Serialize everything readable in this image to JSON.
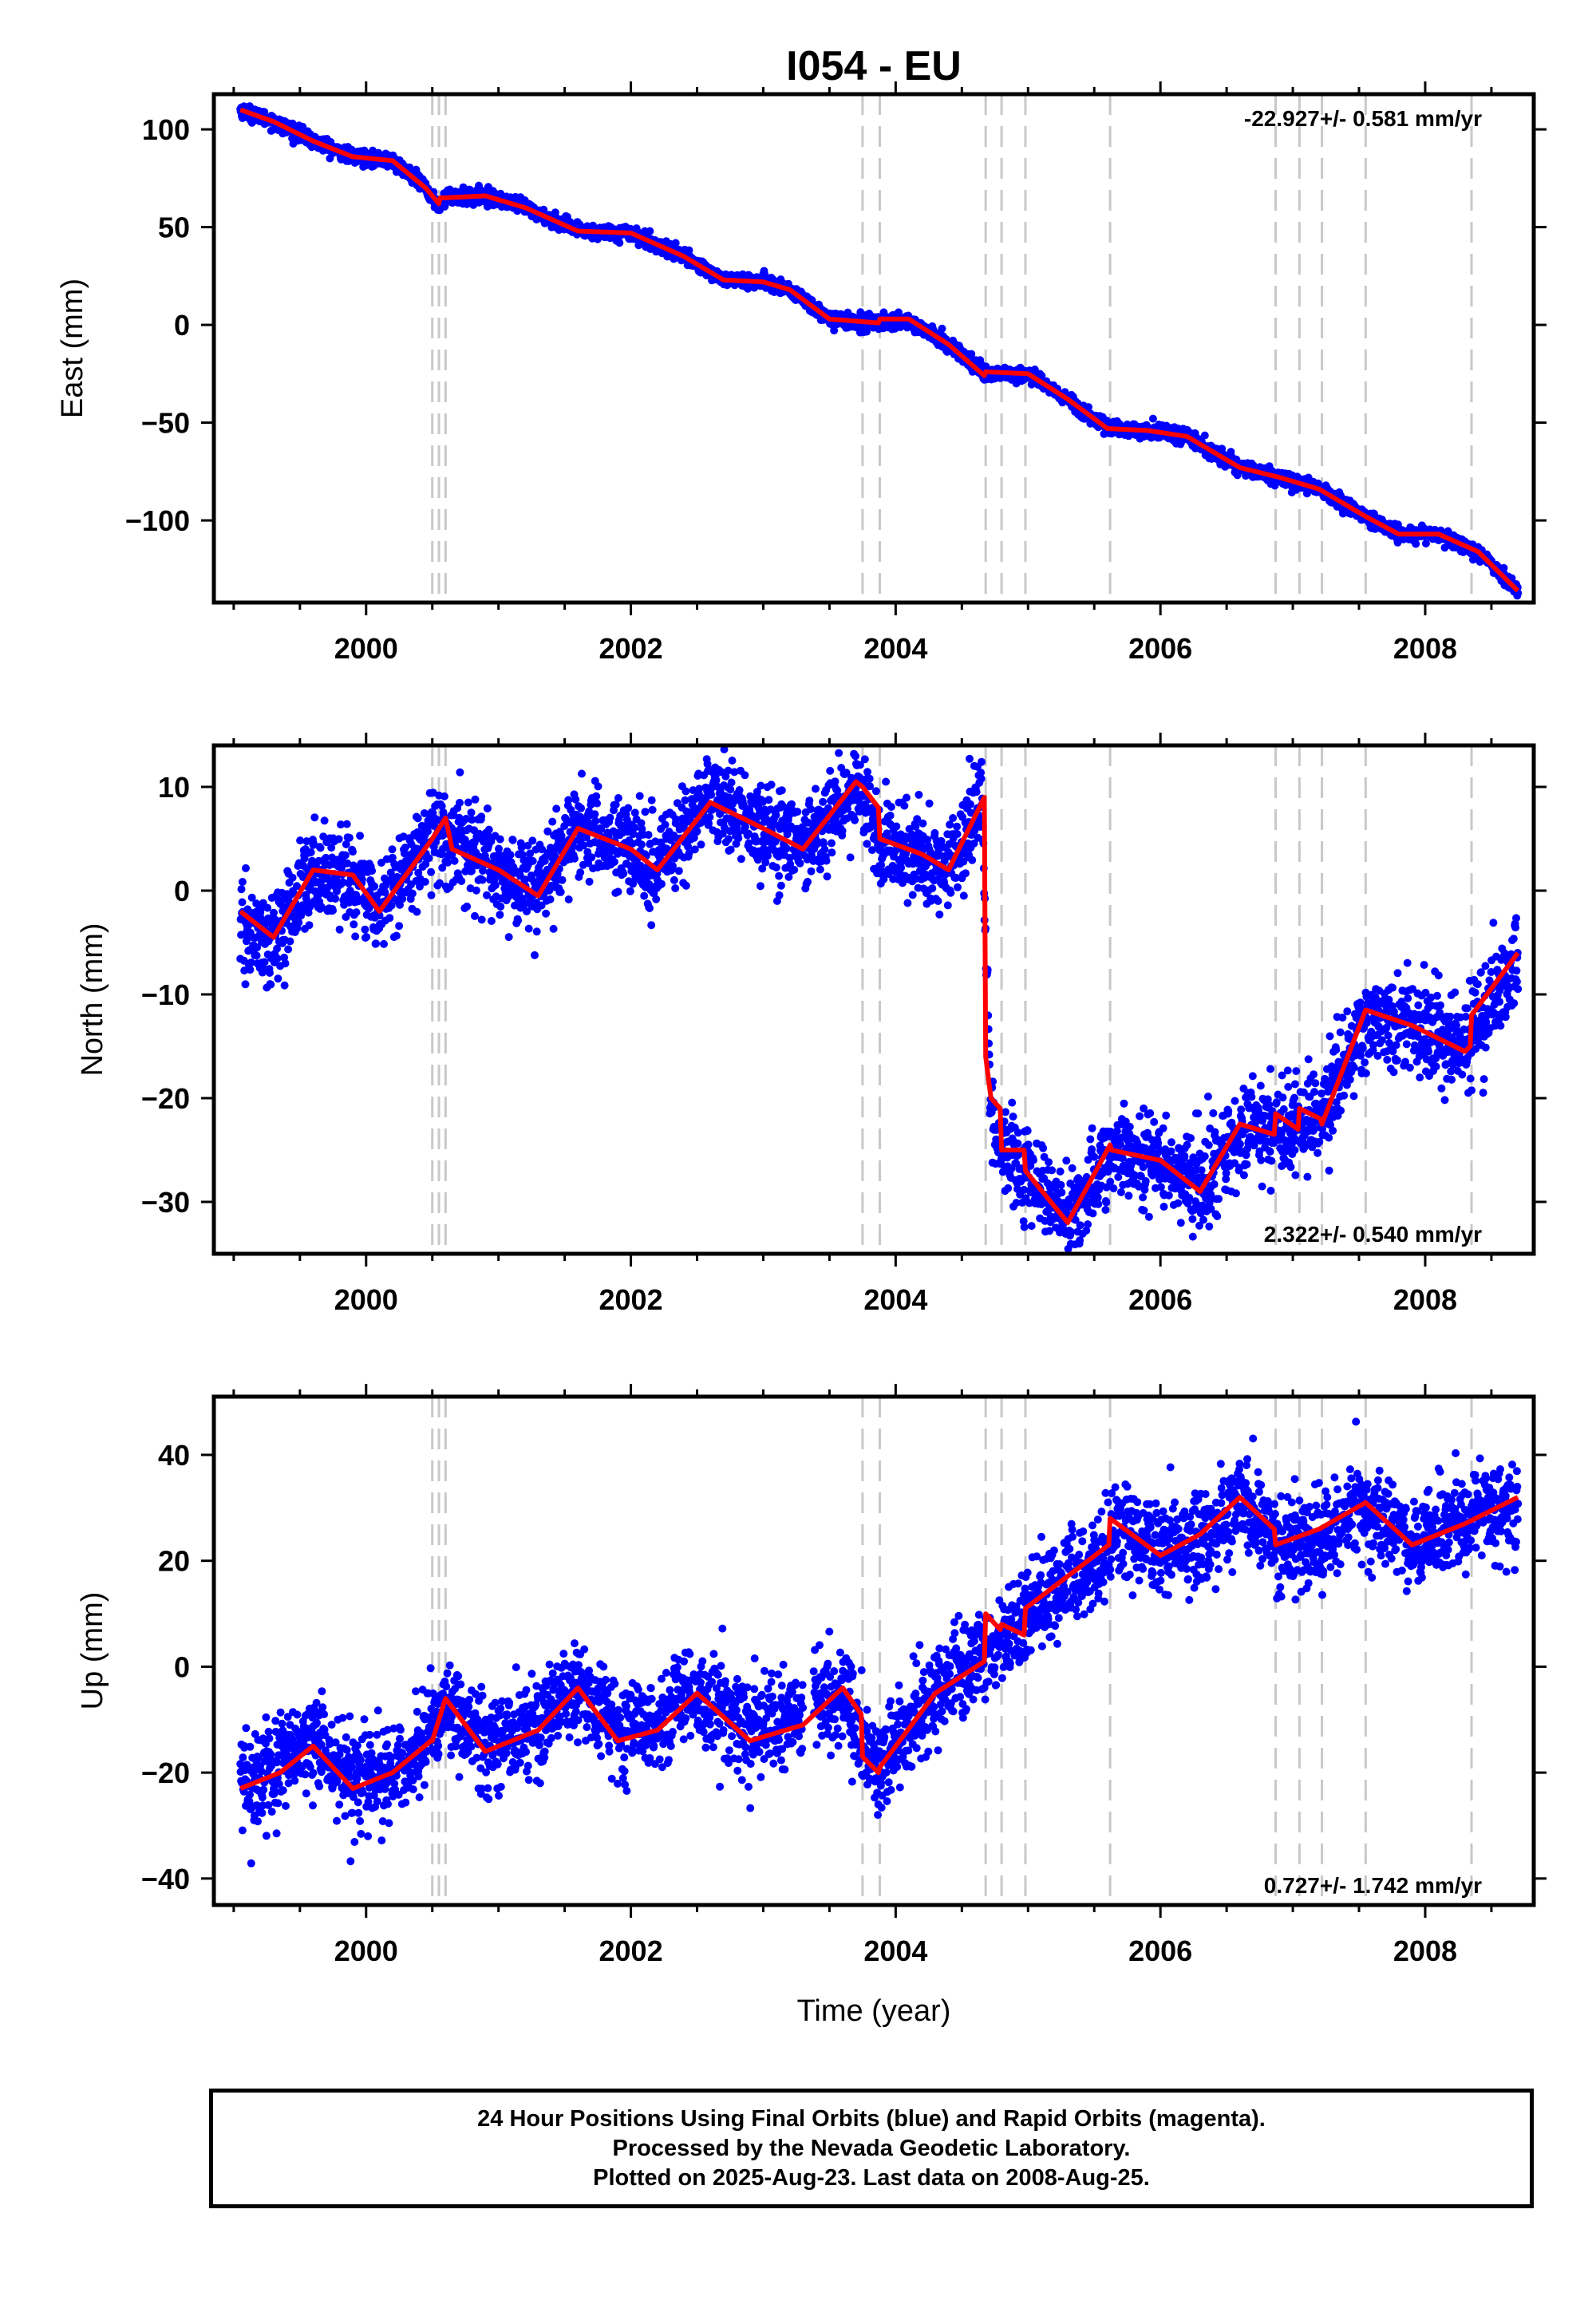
{
  "title": "I054 - EU",
  "colors": {
    "final_orbit_points": "#0000ff",
    "rapid_orbit_points": "#ff00ff",
    "model_fit": "#ff0000",
    "step_markers": "#c8c8c8"
  },
  "footer": {
    "line1": "24 Hour Positions Using Final Orbits (blue) and Rapid Orbits (magenta).",
    "line2": "Processed by the Nevada Geodetic Laboratory.",
    "line3": "Plotted on 2025-Aug-23. Last data on 2008-Aug-25."
  },
  "chart_data": [
    {
      "type": "scatter",
      "panel": "east",
      "title": "I054 - EU",
      "xlabel": "",
      "ylabel": "East (mm)",
      "rate_text": "-22.927+/- 0.581 mm/yr",
      "rate_position": "top-right",
      "xlim": [
        1998.85,
        2008.82
      ],
      "ylim": [
        -142,
        118
      ],
      "xticks": [
        2000,
        2002,
        2004,
        2006,
        2008
      ],
      "yticks": [
        -100,
        -50,
        0,
        50,
        100
      ],
      "grid": false,
      "vertical_markers": [
        2000.5,
        2000.55,
        2000.6,
        2003.75,
        2003.88,
        2004.68,
        2004.8,
        2004.98,
        2005.62,
        2006.87,
        2007.05,
        2007.22,
        2007.55,
        2008.35
      ],
      "series": [
        {
          "kind": "points",
          "color": "#0000ff",
          "start": 1999.05,
          "end": 2008.7,
          "noise_sd": 1.8,
          "trend_x": [
            1999.05,
            1999.3,
            1999.6,
            1999.9,
            2000.2,
            2000.45,
            2000.55,
            2000.6,
            2000.9,
            2001.2,
            2001.6,
            2002.0,
            2002.4,
            2002.7,
            2003.0,
            2003.2,
            2003.5,
            2003.88,
            2004.1,
            2004.4,
            2004.68,
            2005.0,
            2005.3,
            2005.6,
            2005.9,
            2006.2,
            2006.6,
            2006.9,
            2007.2,
            2007.55,
            2007.8,
            2008.1,
            2008.4,
            2008.7
          ],
          "trend_y": [
            110,
            104,
            94,
            86,
            84,
            70,
            60,
            65,
            66,
            60,
            48,
            47,
            35,
            23,
            22,
            18,
            3,
            1,
            2,
            -10,
            -25,
            -25,
            -38,
            -53,
            -54,
            -57,
            -73,
            -78,
            -84,
            -98,
            -107,
            -107,
            -116,
            -136
          ]
        },
        {
          "kind": "line",
          "name": "",
          "color": "#ff0000",
          "x": [
            1999.05,
            1999.3,
            1999.6,
            1999.9,
            2000.2,
            2000.45,
            2000.55,
            2000.56,
            2000.6,
            2000.9,
            2001.2,
            2001.6,
            2002.0,
            2002.4,
            2002.7,
            2003.0,
            2003.2,
            2003.5,
            2003.87,
            2003.88,
            2004.1,
            2004.4,
            2004.67,
            2004.68,
            2005.0,
            2005.3,
            2005.6,
            2005.9,
            2006.2,
            2006.6,
            2006.9,
            2007.2,
            2007.55,
            2007.8,
            2008.1,
            2008.4,
            2008.7
          ],
          "y": [
            110,
            104,
            94,
            86,
            84,
            70,
            62,
            65,
            65,
            66,
            60,
            48,
            47,
            35,
            23,
            22,
            18,
            3,
            1,
            3,
            3,
            -10,
            -26,
            -24,
            -25,
            -38,
            -53,
            -54,
            -57,
            -73,
            -78,
            -84,
            -98,
            -107,
            -107,
            -116,
            -136
          ]
        }
      ]
    },
    {
      "type": "scatter",
      "panel": "north",
      "title": "",
      "xlabel": "",
      "ylabel": "North (mm)",
      "rate_text": "2.322+/- 0.540 mm/yr",
      "rate_position": "bottom-right",
      "xlim": [
        1998.85,
        2008.82
      ],
      "ylim": [
        -35,
        14
      ],
      "xticks": [
        2000,
        2002,
        2004,
        2006,
        2008
      ],
      "yticks": [
        -30,
        -20,
        -10,
        0,
        10
      ],
      "grid": false,
      "vertical_markers": [
        2000.5,
        2000.55,
        2000.6,
        2003.75,
        2003.88,
        2004.68,
        2004.8,
        2004.98,
        2005.62,
        2006.87,
        2007.05,
        2007.22,
        2007.55,
        2008.35
      ],
      "series": [
        {
          "kind": "points",
          "color": "#0000ff",
          "start": 1999.05,
          "end": 2008.7,
          "noise_sd": 2.2,
          "trend_x": [
            1999.05,
            1999.3,
            1999.6,
            1999.9,
            2000.1,
            2000.5,
            2000.6,
            2001.0,
            2001.3,
            2001.6,
            2002.0,
            2002.2,
            2002.6,
            2003.0,
            2003.3,
            2003.7,
            2003.88,
            2004.2,
            2004.4,
            2004.65,
            2004.72,
            2004.8,
            2005.0,
            2005.3,
            2005.65,
            2006.0,
            2006.3,
            2006.6,
            2006.87,
            2007.05,
            2007.2,
            2007.55,
            2007.9,
            2008.3,
            2008.7
          ],
          "trend_y": [
            -4,
            -5,
            2,
            1,
            -2,
            6,
            5,
            2,
            0,
            6,
            4,
            2,
            9,
            6,
            4,
            10,
            5,
            3,
            2,
            9,
            -22,
            -25,
            -27,
            -32,
            -25,
            -26,
            -29,
            -23,
            -23,
            -22,
            -22,
            -12,
            -13,
            -15,
            -6
          ]
        },
        {
          "kind": "line",
          "name": "",
          "color": "#ff0000",
          "x": [
            1999.05,
            1999.3,
            1999.6,
            1999.9,
            2000.1,
            2000.5,
            2000.55,
            2000.6,
            2000.65,
            2001.0,
            2001.3,
            2001.6,
            2002.0,
            2002.2,
            2002.6,
            2003.0,
            2003.3,
            2003.7,
            2003.75,
            2003.87,
            2003.88,
            2004.2,
            2004.4,
            2004.67,
            2004.68,
            2004.72,
            2004.79,
            2004.8,
            2004.97,
            2004.98,
            2005.3,
            2005.62,
            2005.63,
            2006.0,
            2006.3,
            2006.6,
            2006.86,
            2006.87,
            2007.04,
            2007.05,
            2007.21,
            2007.22,
            2007.55,
            2007.9,
            2008.3,
            2008.34,
            2008.35,
            2008.7
          ],
          "y": [
            -2,
            -4.5,
            2,
            1.5,
            -2,
            5,
            6,
            7,
            4,
            2,
            -0.5,
            6,
            4,
            2,
            8.5,
            6,
            4,
            10.5,
            10,
            8,
            5,
            3.5,
            2,
            9,
            -16,
            -20,
            -21,
            -25,
            -25,
            -27,
            -32,
            -24.5,
            -25,
            -26,
            -29,
            -22.5,
            -23.5,
            -21.5,
            -23,
            -21,
            -22,
            -22.5,
            -11.5,
            -13,
            -15.5,
            -15,
            -12,
            -6
          ]
        }
      ]
    },
    {
      "type": "scatter",
      "panel": "up",
      "title": "",
      "xlabel": "Time (year)",
      "ylabel": "Up (mm)",
      "rate_text": "0.727+/- 1.742 mm/yr",
      "rate_position": "bottom-right",
      "xlim": [
        1998.85,
        2008.82
      ],
      "ylim": [
        -45,
        51
      ],
      "xticks": [
        2000,
        2002,
        2004,
        2006,
        2008
      ],
      "yticks": [
        -40,
        -20,
        0,
        20,
        40
      ],
      "grid": false,
      "vertical_markers": [
        2000.5,
        2000.55,
        2000.6,
        2003.75,
        2003.88,
        2004.68,
        2004.8,
        2004.98,
        2005.62,
        2006.87,
        2007.05,
        2007.22,
        2007.55,
        2008.35
      ],
      "series": [
        {
          "kind": "points",
          "color": "#0000ff",
          "start": 1999.05,
          "end": 2008.7,
          "noise_sd": 4.5,
          "gaps": [
            [
              2003.3,
              2003.38
            ]
          ],
          "trend_x": [
            1999.05,
            1999.35,
            1999.6,
            1999.9,
            2000.2,
            2000.5,
            2000.6,
            2000.9,
            2001.3,
            2001.6,
            2001.9,
            2002.2,
            2002.5,
            2002.9,
            2003.3,
            2003.6,
            2003.85,
            2003.9,
            2004.3,
            2004.7,
            2005.0,
            2005.6,
            2005.65,
            2006.0,
            2006.3,
            2006.6,
            2006.9,
            2007.2,
            2007.55,
            2007.9,
            2008.3,
            2008.7
          ],
          "trend_y": [
            -22,
            -19,
            -14,
            -22,
            -21,
            -12,
            -7,
            -15,
            -10,
            -4,
            -13,
            -10,
            -4,
            -13,
            -8,
            -5,
            -19,
            -18,
            -5,
            3,
            10,
            22,
            28,
            22,
            24,
            31,
            24,
            24,
            30,
            24,
            27,
            31
          ]
        },
        {
          "kind": "line",
          "name": "",
          "color": "#ff0000",
          "x": [
            1999.05,
            1999.35,
            1999.6,
            1999.9,
            2000.2,
            2000.49,
            2000.5,
            2000.6,
            2000.9,
            2001.3,
            2001.6,
            2001.9,
            2002.2,
            2002.5,
            2002.9,
            2003.3,
            2003.6,
            2003.74,
            2003.75,
            2003.87,
            2003.88,
            2004.3,
            2004.67,
            2004.68,
            2004.79,
            2004.8,
            2004.97,
            2004.98,
            2005.61,
            2005.62,
            2006.0,
            2006.3,
            2006.6,
            2006.86,
            2006.87,
            2007.2,
            2007.55,
            2007.9,
            2008.3,
            2008.7
          ],
          "y": [
            -23,
            -20,
            -15,
            -23,
            -20,
            -14,
            -14,
            -6,
            -16,
            -12,
            -4,
            -14,
            -12,
            -5,
            -14,
            -11,
            -4,
            -9,
            -17,
            -20,
            -19,
            -5,
            1,
            10,
            7,
            8,
            6,
            11,
            23,
            28,
            21,
            25,
            32,
            26,
            23,
            26,
            31,
            23,
            27,
            32
          ]
        }
      ]
    }
  ]
}
